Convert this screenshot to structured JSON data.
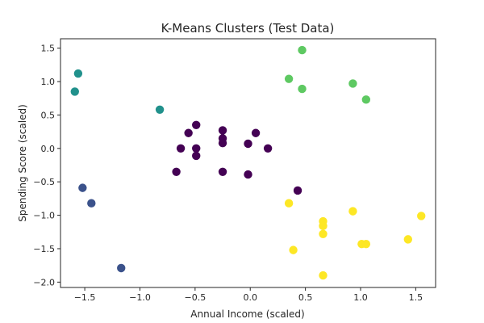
{
  "chart_data": {
    "type": "scatter",
    "title": "K-Means Clusters (Test Data)",
    "xlabel": "Annual Income (scaled)",
    "ylabel": "Spending Score (scaled)",
    "xlim": [
      -1.72,
      1.68
    ],
    "ylim": [
      -2.08,
      1.64
    ],
    "xticks": [
      -1.5,
      -1.0,
      -0.5,
      0.0,
      0.5,
      1.0,
      1.5
    ],
    "yticks": [
      -2.0,
      -1.5,
      -1.0,
      -0.5,
      0.0,
      0.5,
      1.0,
      1.5
    ],
    "grid": false,
    "series": [
      {
        "color": "#440154",
        "points": [
          [
            -0.49,
            0.35
          ],
          [
            -0.56,
            0.23
          ],
          [
            -0.25,
            0.27
          ],
          [
            0.05,
            0.23
          ],
          [
            -0.63,
            0.0
          ],
          [
            -0.49,
            0.0
          ],
          [
            -0.49,
            -0.11
          ],
          [
            -0.25,
            0.15
          ],
          [
            -0.25,
            0.08
          ],
          [
            -0.02,
            0.07
          ],
          [
            0.16,
            0.0
          ],
          [
            -0.67,
            -0.35
          ],
          [
            -0.25,
            -0.35
          ],
          [
            -0.02,
            -0.39
          ],
          [
            0.43,
            -0.63
          ]
        ]
      },
      {
        "color": "#3b528b",
        "points": [
          [
            -1.52,
            -0.59
          ],
          [
            -1.44,
            -0.82
          ],
          [
            -1.17,
            -1.79
          ]
        ]
      },
      {
        "color": "#21918c",
        "points": [
          [
            -1.56,
            1.12
          ],
          [
            -1.59,
            0.85
          ],
          [
            -0.82,
            0.58
          ]
        ]
      },
      {
        "color": "#5ec962",
        "points": [
          [
            0.47,
            1.47
          ],
          [
            0.35,
            1.04
          ],
          [
            0.47,
            0.89
          ],
          [
            0.93,
            0.97
          ],
          [
            1.05,
            0.73
          ]
        ]
      },
      {
        "color": "#fde725",
        "points": [
          [
            0.35,
            -0.82
          ],
          [
            0.66,
            -1.09
          ],
          [
            0.66,
            -1.16
          ],
          [
            0.66,
            -1.28
          ],
          [
            0.93,
            -0.94
          ],
          [
            1.01,
            -1.43
          ],
          [
            1.05,
            -1.43
          ],
          [
            1.43,
            -1.36
          ],
          [
            1.55,
            -1.01
          ],
          [
            0.39,
            -1.52
          ],
          [
            0.66,
            -1.9
          ]
        ]
      }
    ]
  }
}
